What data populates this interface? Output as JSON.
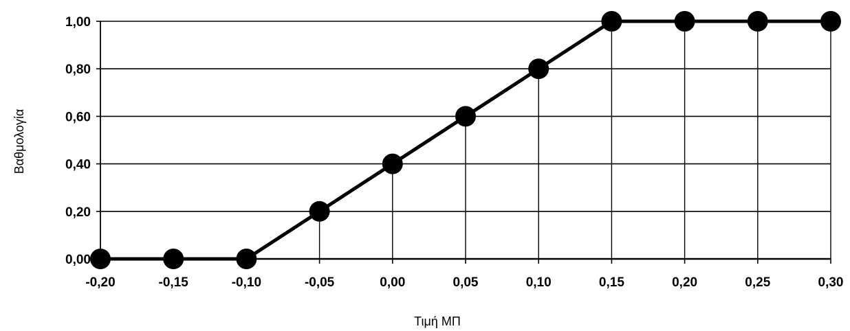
{
  "chart_data": {
    "type": "line",
    "title": "",
    "xlabel": "Τιμή ΜΠ",
    "ylabel": "Βαθμολογία",
    "x": [
      -0.2,
      -0.15,
      -0.1,
      -0.05,
      0.0,
      0.05,
      0.1,
      0.15,
      0.2,
      0.25,
      0.3
    ],
    "series": [
      {
        "values": [
          0.0,
          0.0,
          0.0,
          0.2,
          0.4,
          0.6,
          0.8,
          1.0,
          1.0,
          1.0,
          1.0
        ]
      }
    ],
    "xlim": [
      -0.2,
      0.3
    ],
    "ylim": [
      0.0,
      1.0
    ],
    "x_tick_labels": [
      "-0,20",
      "-0,15",
      "-0,10",
      "-0,05",
      "0,00",
      "0,05",
      "0,10",
      "0,15",
      "0,20",
      "0,25",
      "0,30"
    ],
    "y_ticks": [
      0.0,
      0.2,
      0.4,
      0.6,
      0.8,
      1.0
    ],
    "y_tick_labels": [
      "0,00",
      "0,20",
      "0,40",
      "0,60",
      "0,80",
      "1,00"
    ],
    "grid": "horizontal",
    "drop_lines": true,
    "legend": "none",
    "colors": {
      "line": "#000000",
      "marker": "#000000",
      "grid": "#000000",
      "background": "#ffffff"
    }
  }
}
